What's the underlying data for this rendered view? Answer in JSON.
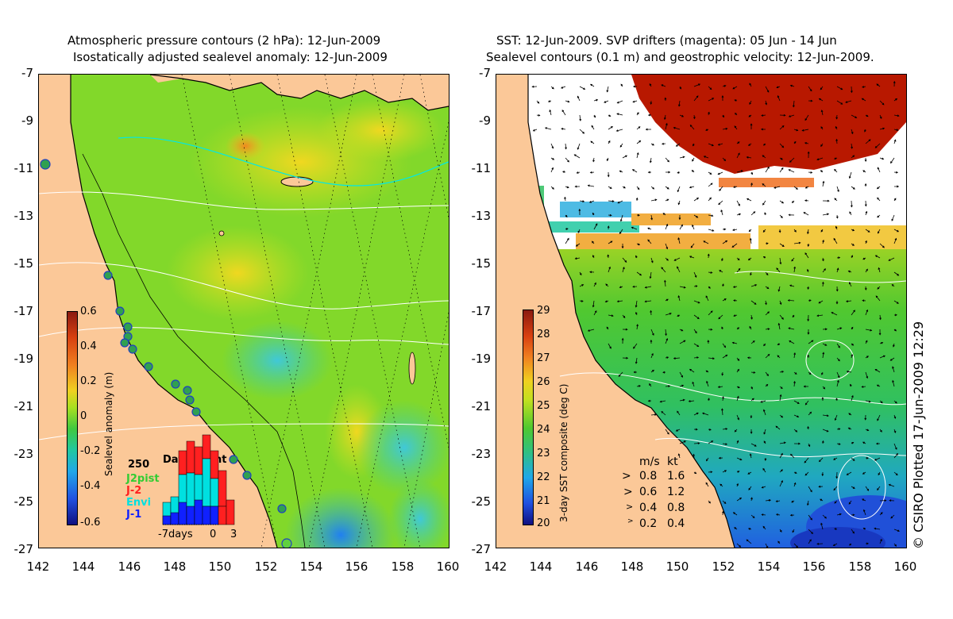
{
  "left_panel": {
    "title_line1": "Atmospheric pressure contours (2 hPa): 12-Jun-2009",
    "title_line2": "Isostatically adjusted sealevel anomaly: 12-Jun-2009",
    "colorbar_label": "Sealevel anomaly (m)",
    "colorbar_ticks": [
      "0.6",
      "0.4",
      "0.2",
      "0",
      "-0.2",
      "-0.4",
      "-0.6"
    ],
    "inset": {
      "title": "Data count",
      "max_label": "250",
      "sources": [
        {
          "name": "J2pist",
          "color": "#33cc33"
        },
        {
          "name": "J-2",
          "color": "#ff2020"
        },
        {
          "name": "Envi",
          "color": "#00e0e0"
        },
        {
          "name": "J-1",
          "color": "#1020ff"
        }
      ],
      "x_labels": [
        "-7days",
        "0",
        "3"
      ]
    }
  },
  "right_panel": {
    "title_line1": "SST: 12-Jun-2009. SVP drifters (magenta): 05 Jun - 14 Jun",
    "title_line2": "Sealevel contours (0.1 m) and geostrophic velocity: 12-Jun-2009.",
    "colorbar_label": "3-day SST composite (deg C)",
    "colorbar_ticks": [
      "29",
      "28",
      "27",
      "26",
      "25",
      "24",
      "23",
      "22",
      "21",
      "20"
    ],
    "velocity_legend": {
      "header_ms": "m/s",
      "header_kt": "kt",
      "rows": [
        {
          "ms": "0.8",
          "kt": "1.6"
        },
        {
          "ms": "0.6",
          "kt": "1.2"
        },
        {
          "ms": "0.4",
          "kt": "0.8"
        },
        {
          "ms": "0.2",
          "kt": "0.4"
        }
      ]
    }
  },
  "axes": {
    "y_ticks": [
      "-7",
      "-9",
      "-11",
      "-13",
      "-15",
      "-17",
      "-19",
      "-21",
      "-23",
      "-25",
      "-27"
    ],
    "x_ticks": [
      "142",
      "144",
      "146",
      "148",
      "150",
      "152",
      "154",
      "156",
      "158",
      "160"
    ]
  },
  "credit": "© CSIRO Plotted 17-Jun-2009 12:29",
  "colors": {
    "land": "#fbc898",
    "ocean_green": "#7cd62a",
    "sst_red": "#b81800",
    "cold_blue": "#2060e0"
  }
}
